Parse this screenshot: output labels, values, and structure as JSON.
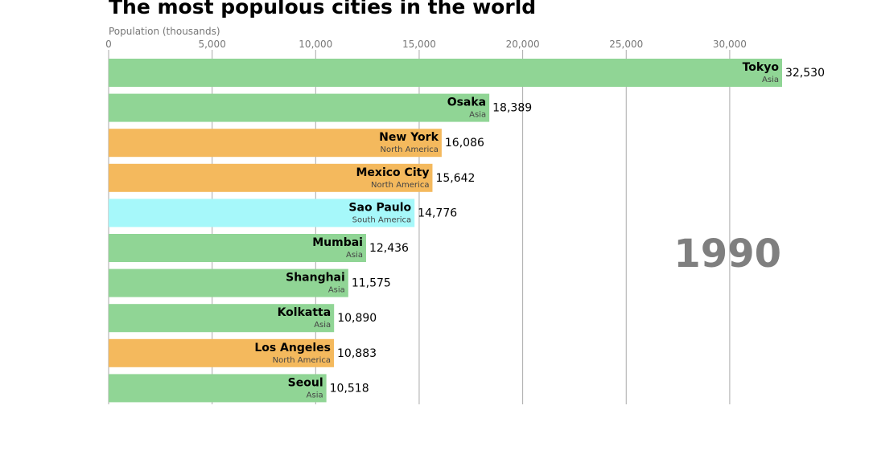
{
  "chart_data": {
    "type": "bar",
    "orientation": "horizontal",
    "title": "The most populous cities in the world",
    "xlabel": "Population (thousands)",
    "ylabel": "",
    "xlim": [
      0,
      35000
    ],
    "ticks": [
      {
        "value": 0,
        "label": "0"
      },
      {
        "value": 5000,
        "label": "5,000"
      },
      {
        "value": 10000,
        "label": "10,000"
      },
      {
        "value": 15000,
        "label": "15,000"
      },
      {
        "value": 20000,
        "label": "20,000"
      },
      {
        "value": 25000,
        "label": "25,000"
      },
      {
        "value": 30000,
        "label": "30,000"
      }
    ],
    "grid": true,
    "year": "1990",
    "group_colors": {
      "Asia": "#90d595",
      "North America": "#f4b95d",
      "South America": "#a6f8fa"
    },
    "bars": [
      {
        "name": "Tokyo",
        "group": "Asia",
        "value": 32530,
        "label": "32,530"
      },
      {
        "name": "Osaka",
        "group": "Asia",
        "value": 18389,
        "label": "18,389"
      },
      {
        "name": "New York",
        "group": "North America",
        "value": 16086,
        "label": "16,086"
      },
      {
        "name": "Mexico City",
        "group": "North America",
        "value": 15642,
        "label": "15,642"
      },
      {
        "name": "Sao Paulo",
        "group": "South America",
        "value": 14776,
        "label": "14,776"
      },
      {
        "name": "Mumbai",
        "group": "Asia",
        "value": 12436,
        "label": "12,436"
      },
      {
        "name": "Shanghai",
        "group": "Asia",
        "value": 11575,
        "label": "11,575"
      },
      {
        "name": "Kolkatta",
        "group": "Asia",
        "value": 10890,
        "label": "10,890"
      },
      {
        "name": "Los Angeles",
        "group": "North America",
        "value": 10883,
        "label": "10,883"
      },
      {
        "name": "Seoul",
        "group": "Asia",
        "value": 10518,
        "label": "10,518"
      }
    ]
  }
}
